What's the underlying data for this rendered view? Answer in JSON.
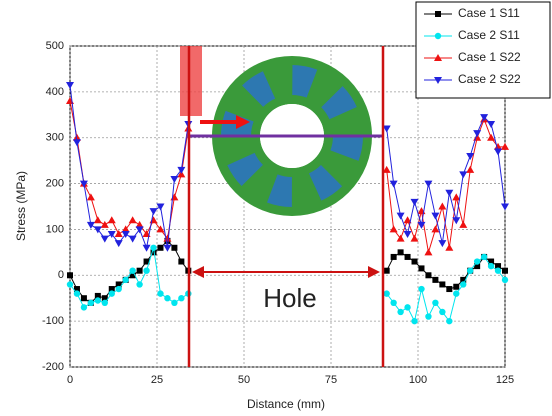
{
  "chart_data": {
    "type": "line",
    "x_label": "Distance (mm)",
    "y_label": "Stress (MPa)",
    "annotation": "Hole",
    "x": [
      0,
      2,
      4,
      6,
      8,
      10,
      12,
      14,
      16,
      18,
      20,
      22,
      24,
      26,
      28,
      30,
      32,
      34,
      91,
      93,
      95,
      97,
      99,
      101,
      103,
      105,
      107,
      109,
      111,
      113,
      115,
      117,
      119,
      121,
      123,
      125
    ],
    "series": [
      {
        "name": "Case 1 S11",
        "color": "#000000",
        "marker": "square",
        "values": [
          0,
          -30,
          -50,
          -60,
          -45,
          -50,
          -30,
          -20,
          -10,
          0,
          10,
          30,
          50,
          60,
          75,
          60,
          30,
          10,
          10,
          40,
          50,
          40,
          30,
          15,
          0,
          -10,
          -20,
          -30,
          -25,
          -10,
          10,
          20,
          40,
          30,
          20,
          10
        ]
      },
      {
        "name": "Case 2 S11",
        "color": "#00e5ee",
        "marker": "circle",
        "values": [
          -20,
          -40,
          -70,
          -60,
          -55,
          -60,
          -40,
          -30,
          -10,
          10,
          -20,
          10,
          60,
          -40,
          -50,
          -60,
          -50,
          -40,
          -40,
          -60,
          -80,
          -70,
          -100,
          -30,
          -90,
          -60,
          -80,
          -100,
          -40,
          -20,
          10,
          30,
          40,
          20,
          10,
          -10
        ]
      },
      {
        "name": "Case 1 S22",
        "color": "#ee1111",
        "marker": "triangle-up",
        "values": [
          380,
          300,
          200,
          170,
          120,
          110,
          120,
          90,
          100,
          120,
          110,
          90,
          120,
          100,
          80,
          170,
          220,
          320,
          230,
          100,
          80,
          120,
          80,
          140,
          50,
          100,
          150,
          60,
          170,
          110,
          230,
          300,
          340,
          300,
          280,
          280
        ]
      },
      {
        "name": "Case 2 S22",
        "color": "#2222dd",
        "marker": "triangle-down",
        "values": [
          415,
          290,
          200,
          110,
          100,
          80,
          90,
          70,
          90,
          80,
          100,
          60,
          140,
          150,
          60,
          210,
          230,
          330,
          320,
          200,
          130,
          90,
          160,
          110,
          200,
          130,
          70,
          180,
          120,
          220,
          260,
          310,
          345,
          330,
          270,
          150
        ]
      }
    ],
    "xlim": [
      0,
      125
    ],
    "xticks": [
      0,
      25,
      50,
      75,
      100,
      125
    ],
    "ylim": [
      -200,
      500
    ],
    "yticks": [
      -200,
      -100,
      0,
      100,
      200,
      300,
      400,
      500
    ],
    "grid": true,
    "legend": "top-right"
  }
}
